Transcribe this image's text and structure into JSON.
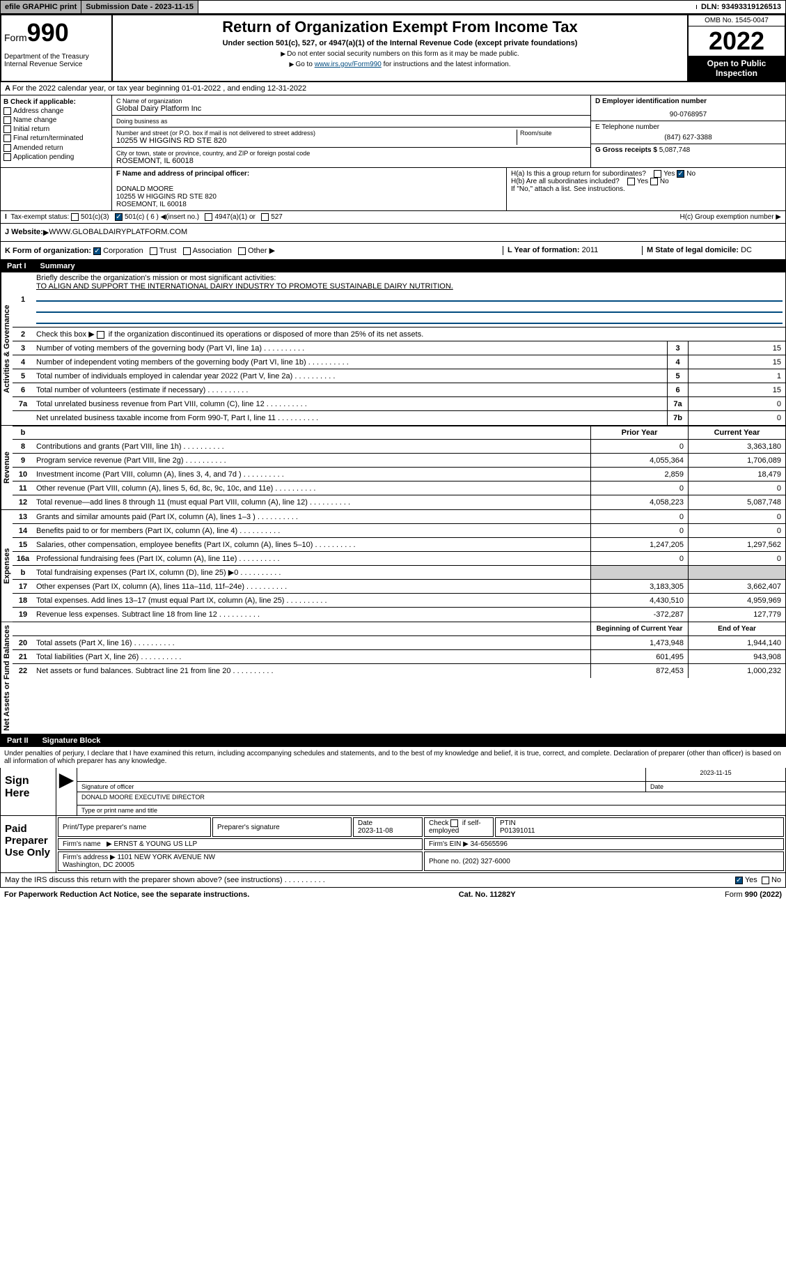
{
  "topbar": {
    "efile": "efile GRAPHIC print",
    "submission_label": "Submission Date - 2023-11-15",
    "dln": "DLN: 93493319126513"
  },
  "header": {
    "form_prefix": "Form",
    "form_number": "990",
    "title": "Return of Organization Exempt From Income Tax",
    "subtitle": "Under section 501(c), 527, or 4947(a)(1) of the Internal Revenue Code (except private foundations)",
    "instr1": "Do not enter social security numbers on this form as it may be made public.",
    "instr2_prefix": "Go to ",
    "instr2_link": "www.irs.gov/Form990",
    "instr2_suffix": " for instructions and the latest information.",
    "dept": "Department of the Treasury\nInternal Revenue Service",
    "omb": "OMB No. 1545-0047",
    "year": "2022",
    "open_public": "Open to Public Inspection"
  },
  "section_a": {
    "period": "For the 2022 calendar year, or tax year beginning 01-01-2022   , and ending 12-31-2022",
    "b_label": "B Check if applicable:",
    "b_items": [
      "Address change",
      "Name change",
      "Initial return",
      "Final return/terminated",
      "Amended return",
      "Application pending"
    ],
    "c_label": "C Name of organization",
    "c_name": "Global Dairy Platform Inc",
    "dba_label": "Doing business as",
    "dba": "",
    "addr_label": "Number and street (or P.O. box if mail is not delivered to street address)",
    "addr": "10255 W HIGGINS RD STE 820",
    "room_label": "Room/suite",
    "city_label": "City or town, state or province, country, and ZIP or foreign postal code",
    "city": "ROSEMONT, IL  60018",
    "d_label": "D Employer identification number",
    "d_ein": "90-0768957",
    "e_label": "E Telephone number",
    "e_phone": "(847) 627-3388",
    "g_label": "G Gross receipts $",
    "g_amount": "5,087,748",
    "f_label": "F Name and address of principal officer:",
    "f_name": "DONALD MOORE",
    "f_addr": "10255 W HIGGINS RD STE 820\nROSEMONT, IL  60018",
    "ha_label": "H(a)  Is this a group return for subordinates?",
    "hb_label": "H(b)  Are all subordinates included?",
    "hb_note": "If \"No,\" attach a list. See instructions.",
    "hc_label": "H(c)  Group exemption number",
    "i_label": "Tax-exempt status:",
    "i_501c3": "501(c)(3)",
    "i_501c": "501(c) ( 6 )",
    "i_insert": "(insert no.)",
    "i_4947": "4947(a)(1) or",
    "i_527": "527",
    "j_label": "J  Website:",
    "j_website": "WWW.GLOBALDAIRYPLATFORM.COM",
    "k_label": "K Form of organization:",
    "k_corp": "Corporation",
    "k_trust": "Trust",
    "k_assoc": "Association",
    "k_other": "Other",
    "l_label": "L Year of formation:",
    "l_year": "2011",
    "m_label": "M State of legal domicile:",
    "m_state": "DC",
    "yes": "Yes",
    "no": "No"
  },
  "part1": {
    "header_num": "Part I",
    "header_title": "Summary",
    "line1_label": "Briefly describe the organization's mission or most significant activities:",
    "line1_text": "TO ALIGN AND SUPPORT THE INTERNATIONAL DAIRY INDUSTRY TO PROMOTE SUSTAINABLE DAIRY NUTRITION.",
    "line2_label": "Check this box",
    "line2_suffix": "if the organization discontinued its operations or disposed of more than 25% of its net assets.",
    "lines_gov": [
      {
        "num": "3",
        "text": "Number of voting members of the governing body (Part VI, line 1a)",
        "box": "3",
        "val": "15"
      },
      {
        "num": "4",
        "text": "Number of independent voting members of the governing body (Part VI, line 1b)",
        "box": "4",
        "val": "15"
      },
      {
        "num": "5",
        "text": "Total number of individuals employed in calendar year 2022 (Part V, line 2a)",
        "box": "5",
        "val": "1"
      },
      {
        "num": "6",
        "text": "Total number of volunteers (estimate if necessary)",
        "box": "6",
        "val": "15"
      },
      {
        "num": "7a",
        "text": "Total unrelated business revenue from Part VIII, column (C), line 12",
        "box": "7a",
        "val": "0"
      },
      {
        "num": "",
        "text": "Net unrelated business taxable income from Form 990-T, Part I, line 11",
        "box": "7b",
        "val": "0"
      }
    ],
    "prior_year": "Prior Year",
    "current_year": "Current Year",
    "lines_rev": [
      {
        "num": "8",
        "text": "Contributions and grants (Part VIII, line 1h)",
        "prior": "0",
        "curr": "3,363,180"
      },
      {
        "num": "9",
        "text": "Program service revenue (Part VIII, line 2g)",
        "prior": "4,055,364",
        "curr": "1,706,089"
      },
      {
        "num": "10",
        "text": "Investment income (Part VIII, column (A), lines 3, 4, and 7d )",
        "prior": "2,859",
        "curr": "18,479"
      },
      {
        "num": "11",
        "text": "Other revenue (Part VIII, column (A), lines 5, 6d, 8c, 9c, 10c, and 11e)",
        "prior": "0",
        "curr": "0"
      },
      {
        "num": "12",
        "text": "Total revenue—add lines 8 through 11 (must equal Part VIII, column (A), line 12)",
        "prior": "4,058,223",
        "curr": "5,087,748"
      }
    ],
    "lines_exp": [
      {
        "num": "13",
        "text": "Grants and similar amounts paid (Part IX, column (A), lines 1–3 )",
        "prior": "0",
        "curr": "0"
      },
      {
        "num": "14",
        "text": "Benefits paid to or for members (Part IX, column (A), line 4)",
        "prior": "0",
        "curr": "0"
      },
      {
        "num": "15",
        "text": "Salaries, other compensation, employee benefits (Part IX, column (A), lines 5–10)",
        "prior": "1,247,205",
        "curr": "1,297,562"
      },
      {
        "num": "16a",
        "text": "Professional fundraising fees (Part IX, column (A), line 11e)",
        "prior": "0",
        "curr": "0"
      },
      {
        "num": "b",
        "text": "Total fundraising expenses (Part IX, column (D), line 25) ▶0",
        "prior": "",
        "curr": "",
        "shaded": true
      },
      {
        "num": "17",
        "text": "Other expenses (Part IX, column (A), lines 11a–11d, 11f–24e)",
        "prior": "3,183,305",
        "curr": "3,662,407"
      },
      {
        "num": "18",
        "text": "Total expenses. Add lines 13–17 (must equal Part IX, column (A), line 25)",
        "prior": "4,430,510",
        "curr": "4,959,969"
      },
      {
        "num": "19",
        "text": "Revenue less expenses. Subtract line 18 from line 12",
        "prior": "-372,287",
        "curr": "127,779"
      }
    ],
    "begin_year": "Beginning of Current Year",
    "end_year": "End of Year",
    "lines_net": [
      {
        "num": "20",
        "text": "Total assets (Part X, line 16)",
        "prior": "1,473,948",
        "curr": "1,944,140"
      },
      {
        "num": "21",
        "text": "Total liabilities (Part X, line 26)",
        "prior": "601,495",
        "curr": "943,908"
      },
      {
        "num": "22",
        "text": "Net assets or fund balances. Subtract line 21 from line 20",
        "prior": "872,453",
        "curr": "1,000,232"
      }
    ],
    "vert_gov": "Activities & Governance",
    "vert_rev": "Revenue",
    "vert_exp": "Expenses",
    "vert_net": "Net Assets or Fund Balances"
  },
  "part2": {
    "header_num": "Part II",
    "header_title": "Signature Block",
    "penalty": "Under penalties of perjury, I declare that I have examined this return, including accompanying schedules and statements, and to the best of my knowledge and belief, it is true, correct, and complete. Declaration of preparer (other than officer) is based on all information of which preparer has any knowledge.",
    "sign_here": "Sign Here",
    "sig_officer": "Signature of officer",
    "sig_date": "2023-11-15",
    "date_label": "Date",
    "officer_name": "DONALD MOORE  EXECUTIVE DIRECTOR",
    "type_name": "Type or print name and title",
    "paid_prep": "Paid Preparer Use Only",
    "prep_name_label": "Print/Type preparer's name",
    "prep_sig_label": "Preparer's signature",
    "prep_date_label": "Date",
    "prep_date": "2023-11-08",
    "check_if": "Check",
    "self_emp": "if self-employed",
    "ptin_label": "PTIN",
    "ptin": "P01391011",
    "firm_name_label": "Firm's name",
    "firm_name": "ERNST & YOUNG US LLP",
    "firm_ein_label": "Firm's EIN",
    "firm_ein": "34-6565596",
    "firm_addr_label": "Firm's address",
    "firm_addr": "1101 NEW YORK AVENUE NW\nWashington, DC  20005",
    "phone_label": "Phone no.",
    "phone": "(202) 327-6000",
    "discuss": "May the IRS discuss this return with the preparer shown above? (see instructions)"
  },
  "footer": {
    "paperwork": "For Paperwork Reduction Act Notice, see the separate instructions.",
    "cat": "Cat. No. 11282Y",
    "form": "Form 990 (2022)"
  }
}
